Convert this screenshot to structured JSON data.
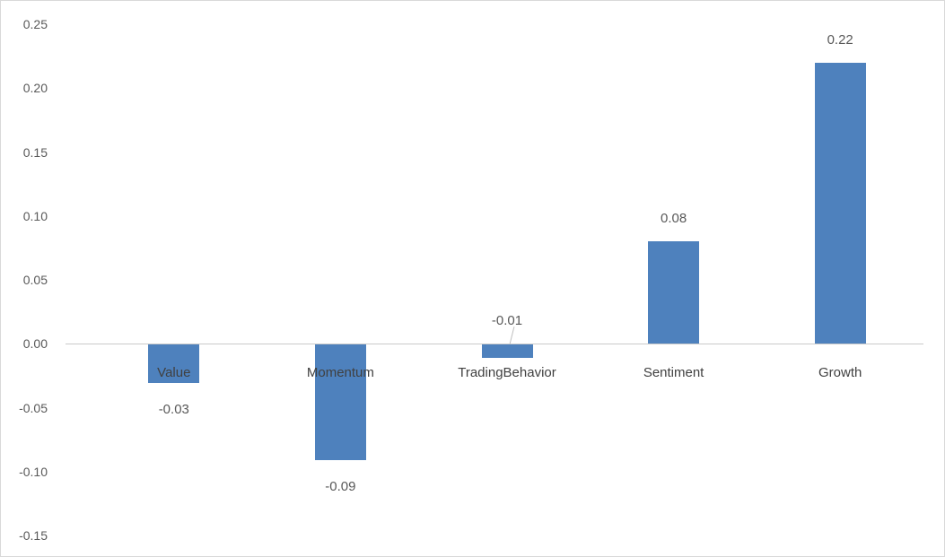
{
  "chart_data": {
    "type": "bar",
    "categories": [
      "Value",
      "Momentum",
      "TradingBehavior",
      "Sentiment",
      "Growth"
    ],
    "values": [
      -0.03,
      -0.09,
      -0.01,
      0.08,
      0.22
    ],
    "data_labels": [
      "-0.03",
      "-0.09",
      "-0.01",
      "0.08",
      "0.22"
    ],
    "title": "",
    "xlabel": "",
    "ylabel": "",
    "ylim": [
      -0.15,
      0.25
    ],
    "ytick_step": 0.05,
    "ytick_labels": [
      "0.25",
      "0.20",
      "0.15",
      "0.10",
      "0.05",
      "0.00",
      "-0.05",
      "-0.10",
      "-0.15"
    ],
    "grid": false,
    "legend": "none",
    "bar_color": "#4E81BD",
    "axis_line_color": "#c9c9c9",
    "leader_line_color": "#bfbfbf",
    "label_color": "#595959",
    "background": "#ffffff",
    "border_color": "#d9d9d9"
  }
}
